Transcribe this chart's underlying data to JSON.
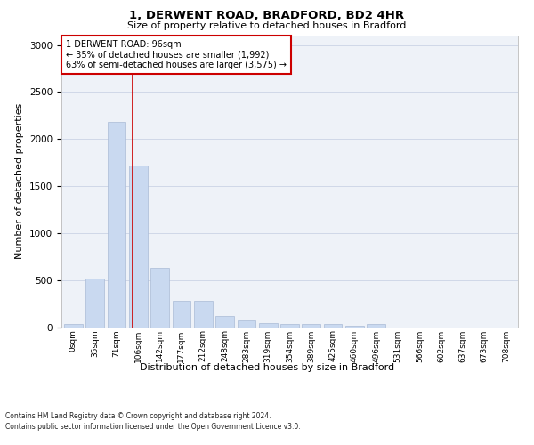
{
  "title": "1, DERWENT ROAD, BRADFORD, BD2 4HR",
  "subtitle": "Size of property relative to detached houses in Bradford",
  "xlabel": "Distribution of detached houses by size in Bradford",
  "ylabel": "Number of detached properties",
  "footnote1": "Contains HM Land Registry data © Crown copyright and database right 2024.",
  "footnote2": "Contains public sector information licensed under the Open Government Licence v3.0.",
  "bar_labels": [
    "0sqm",
    "35sqm",
    "71sqm",
    "106sqm",
    "142sqm",
    "177sqm",
    "212sqm",
    "248sqm",
    "283sqm",
    "319sqm",
    "354sqm",
    "389sqm",
    "425sqm",
    "460sqm",
    "496sqm",
    "531sqm",
    "566sqm",
    "602sqm",
    "637sqm",
    "673sqm",
    "708sqm"
  ],
  "bar_values": [
    30,
    520,
    2180,
    1720,
    630,
    280,
    280,
    120,
    70,
    40,
    30,
    30,
    30,
    10,
    30,
    0,
    0,
    0,
    0,
    0,
    0
  ],
  "bar_color": "#c9d9f0",
  "bar_edge_color": "#aabbd6",
  "grid_color": "#d0d8e8",
  "bg_color": "#eef2f8",
  "red_line_x": 2.72,
  "annotation_text": "1 DERWENT ROAD: 96sqm\n← 35% of detached houses are smaller (1,992)\n63% of semi-detached houses are larger (3,575) →",
  "annotation_box_color": "#ffffff",
  "annotation_border_color": "#cc0000",
  "ylim": [
    0,
    3100
  ],
  "yticks": [
    0,
    500,
    1000,
    1500,
    2000,
    2500,
    3000
  ],
  "title_fontsize": 9.5,
  "subtitle_fontsize": 8,
  "ylabel_fontsize": 8,
  "tick_fontsize": 7.5,
  "xtick_fontsize": 6.5,
  "annotation_fontsize": 7,
  "xlabel_fontsize": 8,
  "footnote_fontsize": 5.5
}
